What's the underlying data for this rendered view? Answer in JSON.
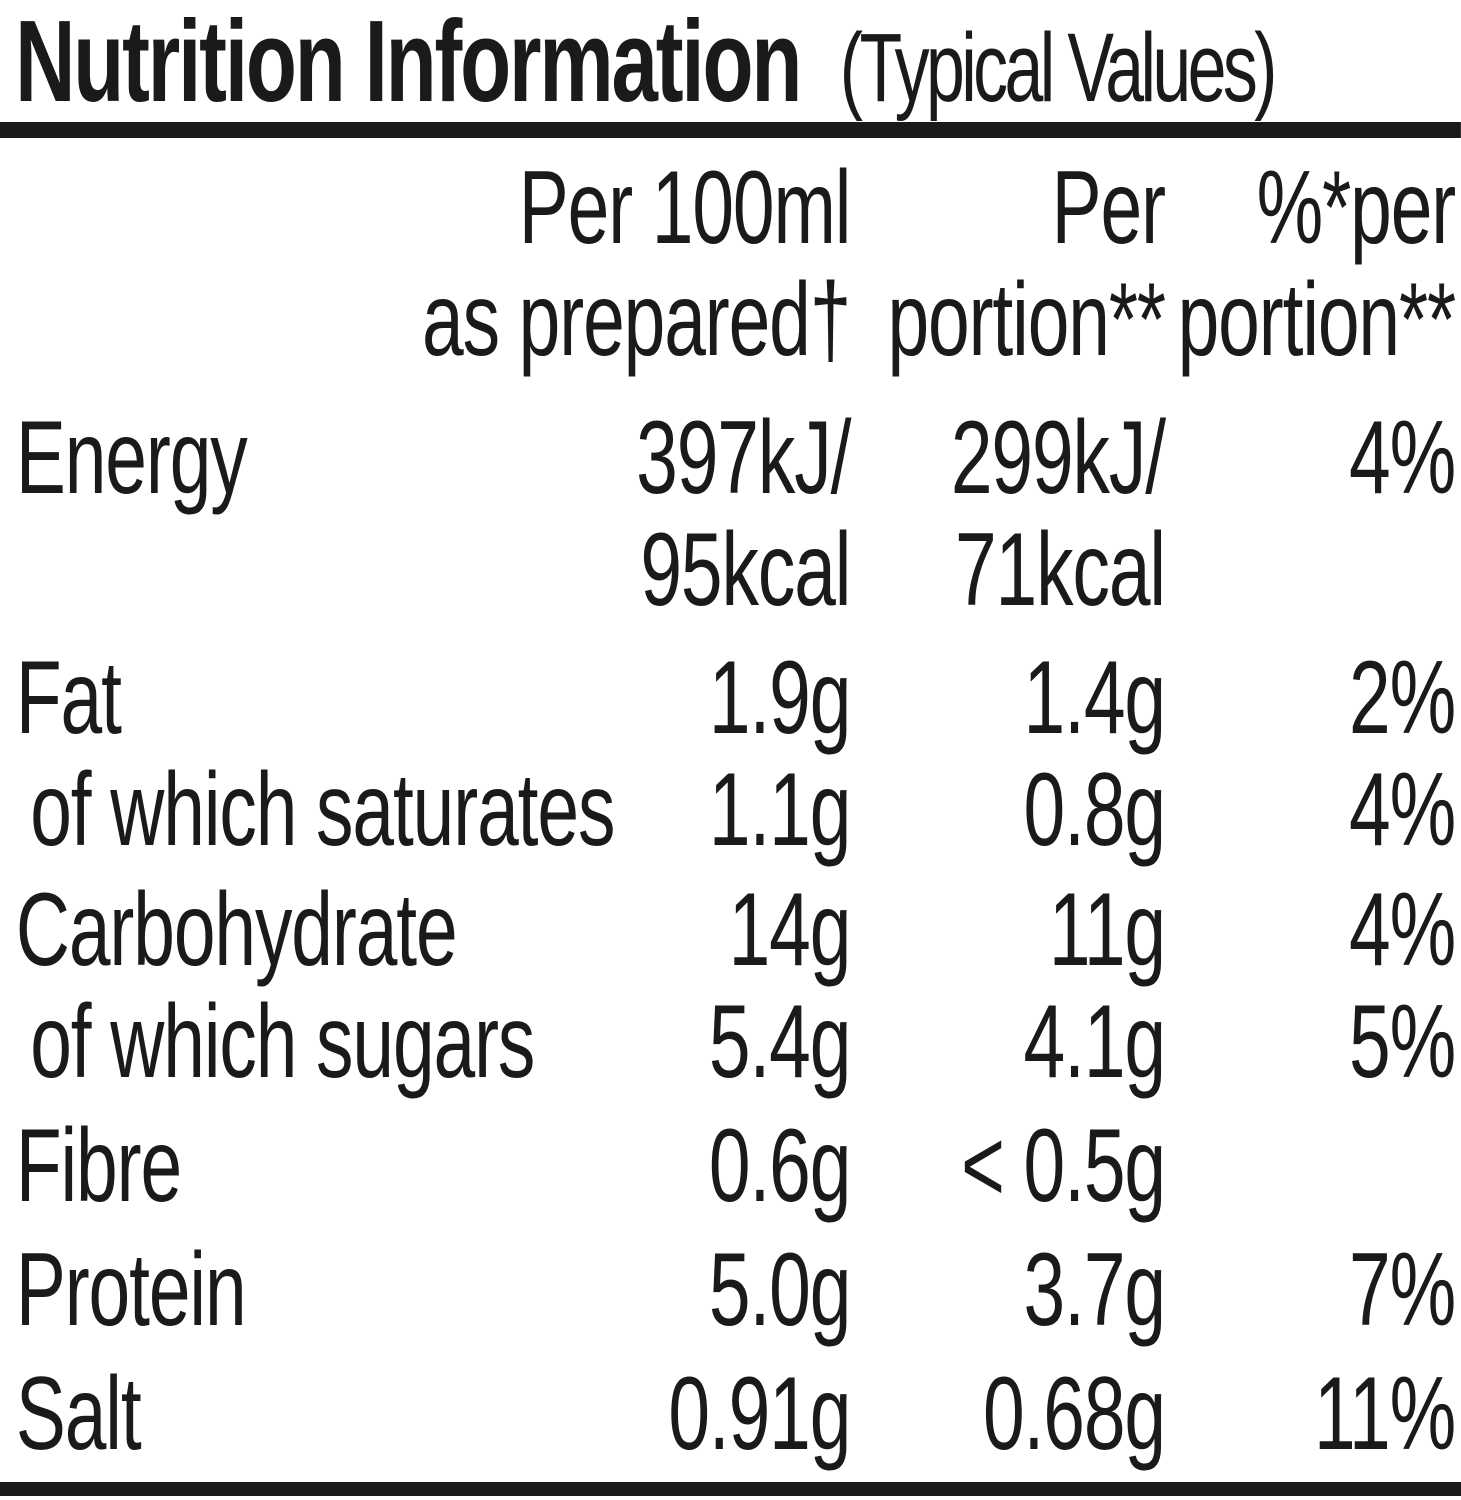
{
  "title": {
    "main": "Nutrition Information",
    "suffix": "(Typical Values)"
  },
  "table": {
    "columns": {
      "per100": "Per 100ml\nas prepared†",
      "portion": "Per\nportion**",
      "pct": "%*per\nportion**"
    },
    "rows": [
      {
        "name": "Energy",
        "indent": false,
        "per100": "397kJ/\n95kcal",
        "portion": "299kJ/\n71kcal",
        "pct": "4%"
      },
      {
        "name": "Fat",
        "indent": false,
        "per100": "1.9g",
        "portion": "1.4g",
        "pct": "2%"
      },
      {
        "name": "of which saturates",
        "indent": true,
        "per100": "1.1g",
        "portion": "0.8g",
        "pct": "4%"
      },
      {
        "name": "Carbohydrate",
        "indent": false,
        "per100": "14g",
        "portion": "11g",
        "pct": "4%"
      },
      {
        "name": "of which sugars",
        "indent": true,
        "per100": "5.4g",
        "portion": "4.1g",
        "pct": "5%"
      },
      {
        "name": "Fibre",
        "indent": false,
        "per100": "0.6g",
        "portion": "< 0.5g",
        "pct": ""
      },
      {
        "name": "Protein",
        "indent": false,
        "per100": "5.0g",
        "portion": "3.7g",
        "pct": "7%"
      },
      {
        "name": "Salt",
        "indent": false,
        "per100": "0.91g",
        "portion": "0.68g",
        "pct": "11%"
      }
    ]
  },
  "colors": {
    "background": "#ffffff",
    "text": "#1a1a1a",
    "rule": "#1a1a1a"
  }
}
